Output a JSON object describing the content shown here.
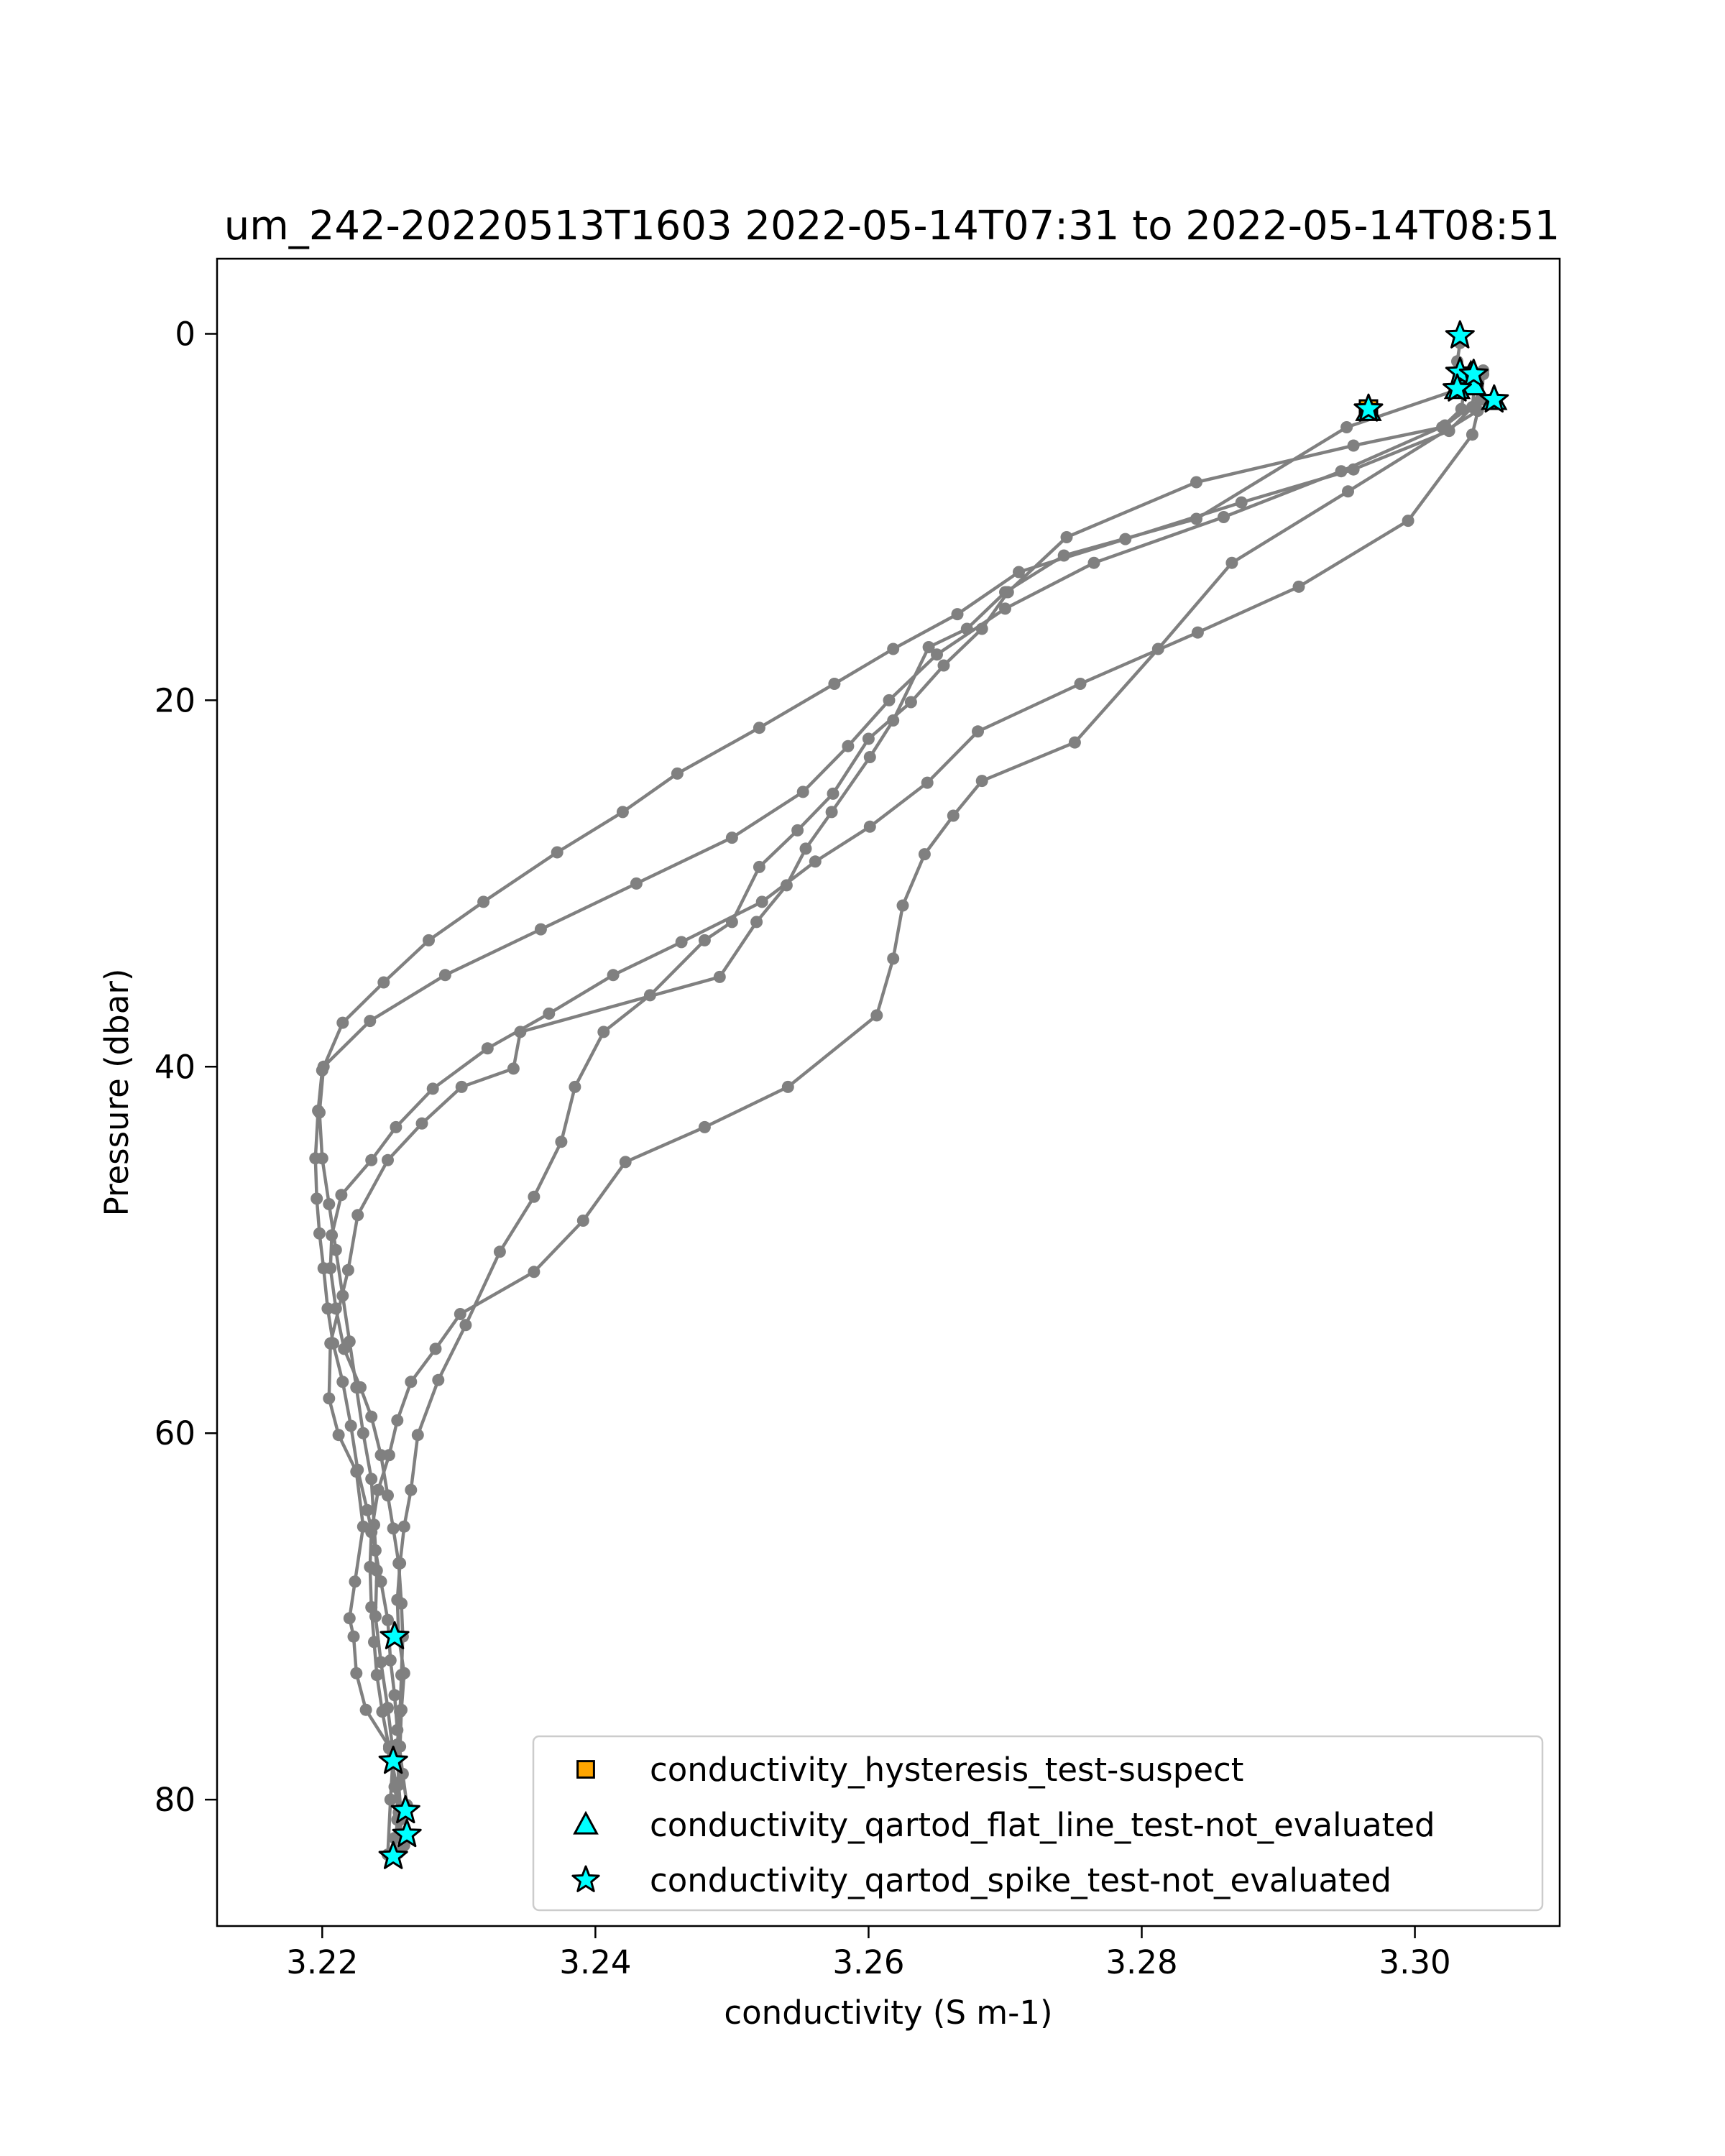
{
  "chart_data": {
    "type": "scatter",
    "title": "um_242-20220513T1603 2022-05-14T07:31 to 2022-05-14T08:51",
    "xlabel": "conductivity (S m-1)",
    "ylabel": "Pressure (dbar)",
    "xlim": [
      3.2123,
      3.3106
    ],
    "ylim": [
      86.9,
      -4.1
    ],
    "y_inverted": true,
    "grid": false,
    "legend_position": "lower right",
    "xticks": [
      3.22,
      3.24,
      3.26,
      3.28,
      3.3
    ],
    "xtick_labels": [
      "3.22",
      "3.24",
      "3.26",
      "3.28",
      "3.30"
    ],
    "yticks": [
      0,
      20,
      40,
      60,
      80
    ],
    "ytick_labels": [
      "0",
      "20",
      "40",
      "60",
      "80"
    ],
    "colors": {
      "profile": "#808080",
      "hysteresis_suspect": "#ffa500",
      "qartod": "#00ffff",
      "marker_edge": "#000000"
    },
    "series": [
      {
        "name": "profile",
        "values": [
          [
            3.3033,
            0.5
          ],
          [
            3.3031,
            1.5
          ],
          [
            3.3033,
            3.0
          ],
          [
            3.295,
            5.1
          ],
          [
            3.284,
            10.1
          ],
          [
            3.2743,
            12.1
          ],
          [
            3.27,
            14.1
          ],
          [
            3.2672,
            16.1
          ],
          [
            3.2644,
            17.1
          ],
          [
            3.2618,
            21.1
          ],
          [
            3.2601,
            23.1
          ],
          [
            3.2573,
            26.1
          ],
          [
            3.2554,
            28.1
          ],
          [
            3.254,
            30.1
          ],
          [
            3.2518,
            32.1
          ],
          [
            3.2491,
            35.1
          ],
          [
            3.2345,
            38.1
          ],
          [
            3.234,
            40.1
          ],
          [
            3.2302,
            41.1
          ],
          [
            3.2273,
            43.1
          ],
          [
            3.2248,
            45.1
          ],
          [
            3.2226,
            48.1
          ],
          [
            3.2219,
            51.1
          ],
          [
            3.2206,
            55.1
          ],
          [
            3.2205,
            58.1
          ],
          [
            3.2212,
            60.1
          ],
          [
            3.2225,
            62.1
          ],
          [
            3.223,
            65.1
          ],
          [
            3.2224,
            68.1
          ],
          [
            3.222,
            70.1
          ],
          [
            3.2223,
            71.1
          ],
          [
            3.2225,
            73.1
          ],
          [
            3.2232,
            75.1
          ],
          [
            3.2249,
            77.1
          ],
          [
            3.2254,
            79.1
          ],
          [
            3.2257,
            81.1
          ],
          [
            3.2253,
            82.1
          ]
        ]
      },
      {
        "name": "profile",
        "values": [
          [
            3.2253,
            83.1
          ],
          [
            3.2255,
            81.1
          ],
          [
            3.2256,
            79.1
          ],
          [
            3.2257,
            77.1
          ],
          [
            3.2258,
            75.1
          ],
          [
            3.226,
            73.1
          ],
          [
            3.2256,
            71.1
          ],
          [
            3.2255,
            69.1
          ],
          [
            3.2257,
            67.1
          ],
          [
            3.226,
            65.1
          ],
          [
            3.2265,
            63.1
          ],
          [
            3.227,
            60.1
          ],
          [
            3.2285,
            57.1
          ],
          [
            3.2305,
            54.1
          ],
          [
            3.233,
            50.1
          ],
          [
            3.2355,
            47.1
          ],
          [
            3.2375,
            44.1
          ],
          [
            3.2385,
            41.1
          ],
          [
            3.2406,
            38.1
          ],
          [
            3.244,
            36.1
          ],
          [
            3.248,
            33.1
          ],
          [
            3.25,
            32.1
          ],
          [
            3.252,
            29.1
          ],
          [
            3.2548,
            27.1
          ],
          [
            3.2574,
            25.1
          ],
          [
            3.26,
            22.1
          ],
          [
            3.2631,
            20.1
          ],
          [
            3.2655,
            18.1
          ],
          [
            3.2683,
            16.1
          ],
          [
            3.2702,
            14.1
          ],
          [
            3.2745,
            11.1
          ],
          [
            3.284,
            8.1
          ],
          [
            3.2955,
            6.1
          ],
          [
            3.302,
            5.1
          ],
          [
            3.3034,
            4.1
          ],
          [
            3.3036,
            3.1
          ],
          [
            3.3038,
            2.1
          ]
        ]
      },
      {
        "name": "profile",
        "values": [
          [
            3.3046,
            2.8
          ],
          [
            3.3046,
            4.2
          ],
          [
            3.2951,
            8.6
          ],
          [
            3.2866,
            12.5
          ],
          [
            3.2812,
            17.2
          ],
          [
            3.2751,
            22.3
          ],
          [
            3.2683,
            24.4
          ],
          [
            3.2662,
            26.3
          ],
          [
            3.2641,
            28.4
          ],
          [
            3.2625,
            31.2
          ],
          [
            3.2618,
            34.1
          ],
          [
            3.2606,
            37.2
          ],
          [
            3.2541,
            41.1
          ],
          [
            3.248,
            43.3
          ],
          [
            3.2422,
            45.2
          ],
          [
            3.2391,
            48.4
          ],
          [
            3.2355,
            51.2
          ],
          [
            3.2301,
            53.5
          ],
          [
            3.2283,
            55.4
          ],
          [
            3.2265,
            57.2
          ],
          [
            3.2255,
            59.3
          ],
          [
            3.2249,
            61.2
          ],
          [
            3.2241,
            63.1
          ],
          [
            3.2236,
            65.4
          ],
          [
            3.2235,
            67.3
          ],
          [
            3.2236,
            69.5
          ],
          [
            3.2238,
            71.4
          ],
          [
            3.224,
            73.2
          ],
          [
            3.2244,
            75.2
          ],
          [
            3.2249,
            77.2
          ],
          [
            3.2253,
            79.3
          ],
          [
            3.2256,
            80.7
          ],
          [
            3.2252,
            83.1
          ]
        ]
      },
      {
        "name": "profile",
        "values": [
          [
            3.2248,
            83.0
          ],
          [
            3.225,
            80.0
          ],
          [
            3.2252,
            77.5
          ],
          [
            3.2248,
            75.0
          ],
          [
            3.2243,
            72.5
          ],
          [
            3.2239,
            70.0
          ],
          [
            3.224,
            67.5
          ],
          [
            3.2238,
            65.0
          ],
          [
            3.2236,
            62.5
          ],
          [
            3.223,
            60.0
          ],
          [
            3.2225,
            57.5
          ],
          [
            3.222,
            55.0
          ],
          [
            3.2215,
            52.5
          ],
          [
            3.221,
            50.0
          ],
          [
            3.2205,
            47.5
          ],
          [
            3.22,
            45.0
          ],
          [
            3.2198,
            42.5
          ],
          [
            3.2201,
            40.0
          ],
          [
            3.2235,
            37.5
          ],
          [
            3.229,
            35.0
          ],
          [
            3.236,
            32.5
          ],
          [
            3.243,
            30.0
          ],
          [
            3.25,
            27.5
          ],
          [
            3.2552,
            25.0
          ],
          [
            3.2585,
            22.5
          ],
          [
            3.2615,
            20.0
          ],
          [
            3.265,
            17.5
          ],
          [
            3.27,
            15.0
          ],
          [
            3.2765,
            12.5
          ],
          [
            3.286,
            10.0
          ],
          [
            3.2946,
            7.5
          ],
          [
            3.3022,
            5.0
          ],
          [
            3.3049,
            3.5
          ],
          [
            3.305,
            2.2
          ]
        ]
      },
      {
        "name": "profile",
        "values": [
          [
            3.305,
            2.0
          ],
          [
            3.3048,
            3.6
          ],
          [
            3.3042,
            5.5
          ],
          [
            3.2995,
            10.2
          ],
          [
            3.2915,
            13.8
          ],
          [
            3.2841,
            16.3
          ],
          [
            3.2755,
            19.1
          ],
          [
            3.268,
            21.7
          ],
          [
            3.2643,
            24.5
          ],
          [
            3.2601,
            26.9
          ],
          [
            3.2561,
            28.8
          ],
          [
            3.2522,
            31.0
          ],
          [
            3.2463,
            33.2
          ],
          [
            3.2413,
            35.0
          ],
          [
            3.2366,
            37.1
          ],
          [
            3.2321,
            39.0
          ],
          [
            3.2281,
            41.2
          ],
          [
            3.2254,
            43.3
          ],
          [
            3.2236,
            45.1
          ],
          [
            3.2214,
            47.0
          ],
          [
            3.2207,
            49.2
          ],
          [
            3.2206,
            51.0
          ],
          [
            3.221,
            53.2
          ],
          [
            3.2216,
            55.4
          ],
          [
            3.2228,
            57.5
          ],
          [
            3.2236,
            59.1
          ],
          [
            3.2243,
            61.2
          ],
          [
            3.2248,
            63.4
          ],
          [
            3.2252,
            65.2
          ],
          [
            3.2256,
            67.1
          ],
          [
            3.2258,
            69.3
          ],
          [
            3.2259,
            71.1
          ],
          [
            3.2258,
            73.2
          ],
          [
            3.2257,
            75.2
          ],
          [
            3.2255,
            77.0
          ],
          [
            3.2256,
            79.2
          ],
          [
            3.2258,
            81.0
          ],
          [
            3.2256,
            82.9
          ]
        ]
      },
      {
        "name": "profile",
        "values": [
          [
            3.226,
            82.5
          ],
          [
            3.2262,
            80.3
          ],
          [
            3.2259,
            78.6
          ],
          [
            3.2255,
            76.2
          ],
          [
            3.2253,
            74.3
          ],
          [
            3.225,
            72.4
          ],
          [
            3.2248,
            70.2
          ],
          [
            3.2243,
            68.1
          ],
          [
            3.2239,
            66.4
          ],
          [
            3.2233,
            64.2
          ],
          [
            3.2226,
            62.0
          ],
          [
            3.2221,
            59.6
          ],
          [
            3.2215,
            57.2
          ],
          [
            3.2208,
            55.1
          ],
          [
            3.2204,
            53.2
          ],
          [
            3.2201,
            51.0
          ],
          [
            3.2198,
            49.1
          ],
          [
            3.2196,
            47.2
          ],
          [
            3.2195,
            45.0
          ],
          [
            3.2197,
            42.4
          ],
          [
            3.22,
            40.2
          ],
          [
            3.2215,
            37.6
          ],
          [
            3.2245,
            35.4
          ],
          [
            3.2278,
            33.1
          ],
          [
            3.2318,
            31.0
          ],
          [
            3.2372,
            28.3
          ],
          [
            3.242,
            26.1
          ],
          [
            3.246,
            24.0
          ],
          [
            3.252,
            21.5
          ],
          [
            3.2575,
            19.1
          ],
          [
            3.2618,
            17.2
          ],
          [
            3.2665,
            15.3
          ],
          [
            3.271,
            13.0
          ],
          [
            3.2788,
            11.2
          ],
          [
            3.2873,
            9.2
          ],
          [
            3.2955,
            7.4
          ],
          [
            3.3025,
            5.3
          ],
          [
            3.3042,
            4.0
          ],
          [
            3.3044,
            2.6
          ]
        ]
      }
    ],
    "flags": [
      {
        "name": "conductivity_hysteresis_test-suspect",
        "marker": "square",
        "color": "#ffa500",
        "points": [
          [
            3.2966,
            4.1
          ]
        ]
      },
      {
        "name": "conductivity_qartod_flat_line_test-not_evaluated",
        "marker": "triangle",
        "color": "#00ffff",
        "points": [
          [
            3.3041,
            2.2
          ],
          [
            3.3043,
            2.8
          ],
          [
            3.3058,
            3.6
          ],
          [
            3.3031,
            3.0
          ],
          [
            3.2966,
            4.2
          ]
        ]
      },
      {
        "name": "conductivity_qartod_spike_test-not_evaluated",
        "marker": "star",
        "color": "#00ffff",
        "points": [
          [
            3.3033,
            0.1
          ],
          [
            3.3033,
            2.1
          ],
          [
            3.3043,
            2.2
          ],
          [
            3.3031,
            3.0
          ],
          [
            3.3058,
            3.6
          ],
          [
            3.2966,
            4.1
          ],
          [
            3.2253,
            71.1
          ],
          [
            3.2252,
            77.9
          ],
          [
            3.2261,
            80.6
          ],
          [
            3.2262,
            81.9
          ],
          [
            3.2252,
            83.1
          ]
        ]
      }
    ],
    "legend": [
      {
        "label": "conductivity_hysteresis_test-suspect",
        "marker": "square"
      },
      {
        "label": "conductivity_qartod_flat_line_test-not_evaluated",
        "marker": "triangle"
      },
      {
        "label": "conductivity_qartod_spike_test-not_evaluated",
        "marker": "star"
      }
    ]
  }
}
